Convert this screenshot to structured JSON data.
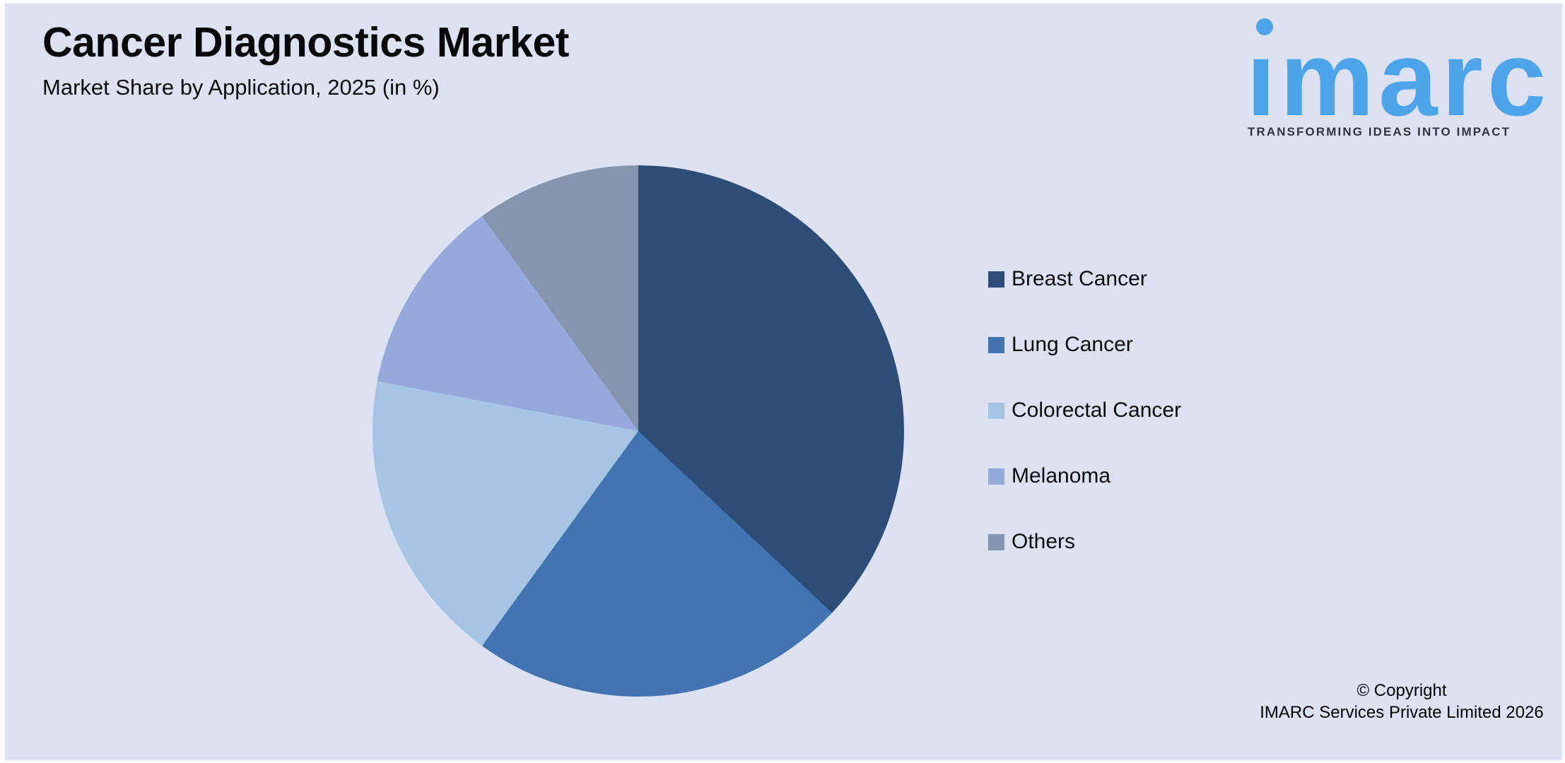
{
  "header": {
    "title": "Cancer Diagnostics Market",
    "subtitle": "Market Share by Application, 2025 (in %)"
  },
  "logo": {
    "brand": "imarc",
    "wordmark_display": "ımarc",
    "tagline": "TRANSFORMING IDEAS INTO IMPACT",
    "brand_color": "#4da4e8"
  },
  "chart_data": {
    "type": "pie",
    "title": "Cancer Diagnostics Market",
    "subtitle": "Market Share by Application, 2025 (in %)",
    "unit": "%",
    "start_angle_deg": 0,
    "direction": "clockwise",
    "legend_position": "right",
    "grid": false,
    "slices": [
      {
        "label": "Breast Cancer",
        "value": 37,
        "color": "#2c4d78"
      },
      {
        "label": "Lung Cancer",
        "value": 23,
        "color": "#4273b2"
      },
      {
        "label": "Colorectal Cancer",
        "value": 18,
        "color": "#a6c4e4"
      },
      {
        "label": "Melanoma",
        "value": 12,
        "color": "#95a9db"
      },
      {
        "label": "Others",
        "value": 10,
        "color": "#8695ae"
      }
    ],
    "colors": {
      "background_panel": "#dce2f2",
      "page_margin": "#ffffff"
    }
  },
  "footer": {
    "copyright_line1": "© Copyright",
    "copyright_line2": "IMARC Services Private Limited 2026"
  }
}
